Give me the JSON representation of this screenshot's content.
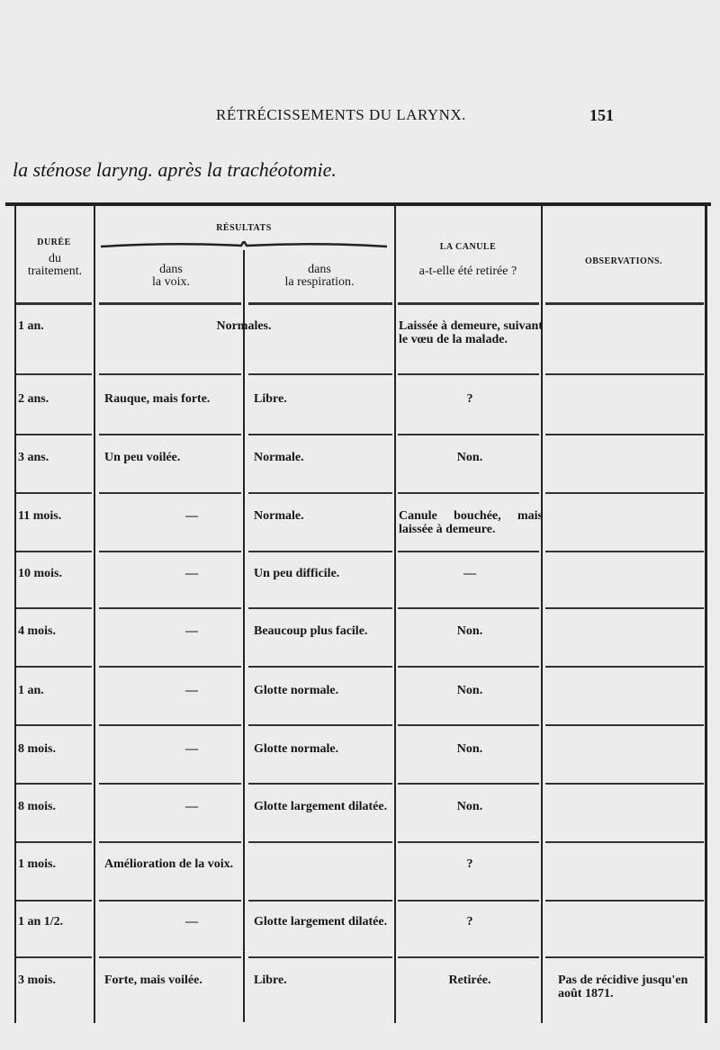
{
  "running_head": "RÉTRÉCISSEMENTS DU LARYNX.",
  "page_number": "151",
  "title": "la sténose laryng. après la trachéotomie.",
  "headers": {
    "duree_top": "DURÉE",
    "duree_1": "du",
    "duree_2": "traitement.",
    "resultats": "RÉSULTATS",
    "voix_1": "dans",
    "voix_2": "la voix.",
    "resp_1": "dans",
    "resp_2": "la respiration.",
    "canule_top": "LA CANULE",
    "canule_q": "a-t-elle été retirée ?",
    "observations": "OBSERVATIONS."
  },
  "rows": [
    {
      "duree": "1 an.",
      "voix": "",
      "resp": "",
      "merged": "Normales.",
      "canule": "Laissée à demeure, suivant le vœu de la malade.",
      "obs": ""
    },
    {
      "duree": "2 ans.",
      "voix": "Rauque, mais forte.",
      "resp": "Libre.",
      "canule": "?",
      "obs": ""
    },
    {
      "duree": "3 ans.",
      "voix": "Un peu voilée.",
      "resp": "Normale.",
      "canule": "Non.",
      "obs": ""
    },
    {
      "duree": "11 mois.",
      "voix": "—",
      "resp": "Normale.",
      "canule": "Canule bouchée, mais laissée à demeure.",
      "obs": ""
    },
    {
      "duree": "10 mois.",
      "voix": "—",
      "resp": "Un peu difficile.",
      "canule": "—",
      "obs": ""
    },
    {
      "duree": "4 mois.",
      "voix": "—",
      "resp": "Beaucoup plus facile.",
      "canule": "Non.",
      "obs": ""
    },
    {
      "duree": "1 an.",
      "voix": "—",
      "resp": "Glotte normale.",
      "canule": "Non.",
      "obs": ""
    },
    {
      "duree": "8 mois.",
      "voix": "—",
      "resp": "Glotte normale.",
      "canule": "Non.",
      "obs": ""
    },
    {
      "duree": "8 mois.",
      "voix": "—",
      "resp": "Glotte largement dilatée.",
      "canule": "Non.",
      "obs": ""
    },
    {
      "duree": "1 mois.",
      "voix": "Amélioration de la voix.",
      "resp": "",
      "canule": "?",
      "obs": ""
    },
    {
      "duree": "1 an 1/2.",
      "voix": "—",
      "resp": "Glotte largement dilatée.",
      "canule": "?",
      "obs": ""
    },
    {
      "duree": "3 mois.",
      "voix": "Forte, mais voilée.",
      "resp": "Libre.",
      "canule": "Retirée.",
      "obs": "Pas de récidive jusqu'en août 1871."
    }
  ]
}
